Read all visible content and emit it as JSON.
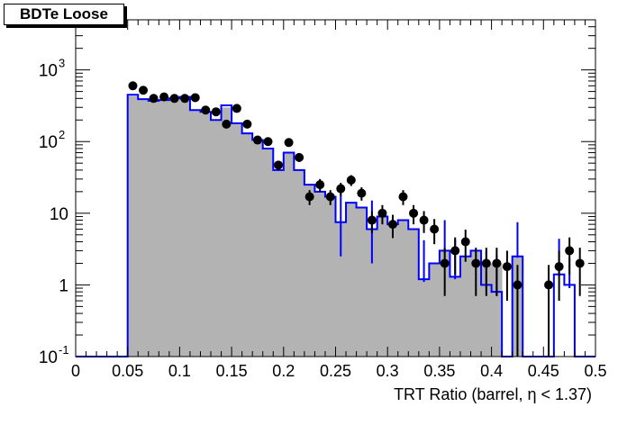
{
  "chart_data": {
    "type": "histogram",
    "title": "BDTe Loose",
    "xlabel": "TRT Ratio (barrel,  η < 1.37)",
    "ylabel": "",
    "xlim": [
      0,
      0.5
    ],
    "ylim": [
      0.1,
      5000
    ],
    "yscale": "log",
    "grid": false,
    "x_ticks": [
      "0",
      "0.05",
      "0.1",
      "0.15",
      "0.2",
      "0.25",
      "0.3",
      "0.35",
      "0.4",
      "0.45",
      "0.5"
    ],
    "y_ticks": [
      {
        "value": 0.1,
        "label": "10",
        "exp": "-1"
      },
      {
        "value": 1,
        "label": "1",
        "exp": ""
      },
      {
        "value": 10,
        "label": "10",
        "exp": ""
      },
      {
        "value": 100,
        "label": "10",
        "exp": "2"
      },
      {
        "value": 1000,
        "label": "10",
        "exp": "3"
      }
    ],
    "bin_width": 0.01,
    "bin_edges_start": 0.05,
    "series": [
      {
        "style": "filled-histogram",
        "color": "#b3b3b3",
        "values": [
          430,
          390,
          370,
          380,
          390,
          420,
          275,
          250,
          200,
          300,
          175,
          130,
          100,
          80,
          40,
          70,
          40,
          25,
          20,
          17,
          7.5,
          14,
          12,
          6,
          9,
          7,
          8,
          6,
          1.2,
          2,
          3,
          1.3,
          2.5,
          3,
          2,
          2,
          0,
          2.5,
          0,
          0,
          0,
          0,
          0,
          0,
          0
        ]
      },
      {
        "style": "step-histogram",
        "color": "#0000ff",
        "values": [
          450,
          390,
          370,
          380,
          400,
          420,
          275,
          260,
          200,
          320,
          180,
          130,
          105,
          80,
          40,
          70,
          40,
          25,
          20,
          17,
          7.5,
          14,
          12,
          6,
          9,
          7,
          8,
          6,
          1.2,
          2,
          3,
          1.3,
          2.5,
          3,
          1,
          0.8,
          0,
          2.5,
          0,
          0,
          0,
          1.4,
          1,
          0,
          0
        ],
        "errors": [
          [
            0,
            0
          ],
          [
            0,
            0
          ],
          [
            0,
            0
          ],
          [
            0,
            0
          ],
          [
            0,
            0
          ],
          [
            0,
            0
          ],
          [
            0,
            0
          ],
          [
            0,
            0
          ],
          [
            0,
            0
          ],
          [
            0,
            0
          ],
          [
            0,
            0
          ],
          [
            0,
            0
          ],
          [
            0,
            0
          ],
          [
            0,
            0
          ],
          [
            0,
            0
          ],
          [
            0,
            0
          ],
          [
            0,
            0
          ],
          [
            0,
            0
          ],
          [
            0,
            0
          ],
          [
            0,
            0
          ],
          [
            5,
            12
          ],
          [
            0,
            0
          ],
          [
            0,
            0
          ],
          [
            4,
            9
          ],
          [
            0,
            0
          ],
          [
            0,
            0
          ],
          [
            0,
            0
          ],
          [
            0,
            0
          ],
          [
            0.1,
            3
          ],
          [
            0,
            0
          ],
          [
            0.2,
            5
          ],
          [
            0.1,
            3
          ],
          [
            0,
            0
          ],
          [
            0,
            0
          ],
          [
            0.1,
            2
          ],
          [
            0.1,
            1.8
          ],
          [
            0,
            0
          ],
          [
            0.1,
            5
          ],
          [
            0,
            0
          ],
          [
            0,
            0
          ],
          [
            0,
            0
          ],
          [
            0.1,
            3
          ],
          [
            0.1,
            1.4
          ],
          [
            0,
            0
          ],
          [
            0,
            0
          ]
        ]
      },
      {
        "style": "data-points",
        "color": "#000000",
        "x": [
          0.055,
          0.065,
          0.075,
          0.085,
          0.095,
          0.105,
          0.115,
          0.125,
          0.135,
          0.145,
          0.155,
          0.165,
          0.175,
          0.185,
          0.195,
          0.205,
          0.215,
          0.225,
          0.235,
          0.245,
          0.255,
          0.265,
          0.275,
          0.285,
          0.295,
          0.305,
          0.315,
          0.325,
          0.335,
          0.345,
          0.355,
          0.365,
          0.375,
          0.385,
          0.395,
          0.405,
          0.415,
          0.425,
          0.455,
          0.465,
          0.475,
          0.485
        ],
        "y": [
          600,
          520,
          400,
          420,
          400,
          400,
          410,
          275,
          260,
          175,
          290,
          175,
          105,
          100,
          47,
          97,
          60,
          17,
          25,
          17,
          22,
          29,
          19,
          8,
          10,
          7,
          17,
          10,
          8,
          6,
          2,
          3,
          4,
          2,
          2,
          2,
          1.8,
          1,
          1,
          1.8,
          3,
          2
        ],
        "yerr_low": [
          25,
          23,
          20,
          20,
          20,
          20,
          20,
          16,
          16,
          13,
          17,
          13,
          10,
          10,
          7,
          10,
          8,
          4,
          5,
          4,
          4.5,
          5,
          4,
          2.7,
          3,
          2.5,
          4,
          3,
          2.7,
          2.3,
          1.3,
          1.6,
          1.9,
          1.3,
          1.3,
          1.3,
          1.2,
          0.9,
          0.9,
          1.2,
          1.6,
          1.3
        ],
        "yerr_high": [
          25,
          23,
          20,
          20,
          20,
          20,
          20,
          16,
          16,
          13,
          17,
          13,
          10,
          10,
          7,
          10,
          8,
          4,
          5,
          4,
          4.5,
          5,
          4,
          2.7,
          3,
          2.5,
          4,
          3,
          2.7,
          2.3,
          1.3,
          1.6,
          1.9,
          1.3,
          1.3,
          1.3,
          1.2,
          0.9,
          0.9,
          1.2,
          1.6,
          1.3
        ]
      }
    ]
  }
}
